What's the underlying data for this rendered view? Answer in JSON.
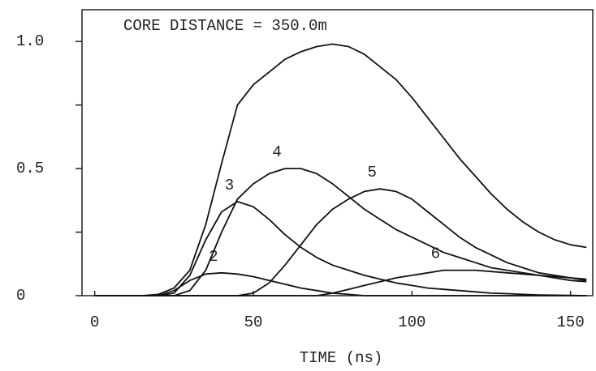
{
  "chart_data": {
    "type": "line",
    "annotation": "CORE DISTANCE = 350.0m",
    "xlabel": "TIME (ns)",
    "x": [
      0,
      5,
      10,
      15,
      20,
      25,
      30,
      35,
      40,
      45,
      50,
      55,
      60,
      65,
      70,
      75,
      80,
      85,
      90,
      95,
      100,
      105,
      110,
      115,
      120,
      125,
      130,
      135,
      140,
      145,
      150,
      155
    ],
    "series": [
      {
        "color": "#111111",
        "values": [
          0,
          0,
          0,
          0,
          0.005,
          0.03,
          0.1,
          0.28,
          0.52,
          0.75,
          0.83,
          0.88,
          0.93,
          0.96,
          0.98,
          0.99,
          0.98,
          0.95,
          0.9,
          0.85,
          0.78,
          0.7,
          0.62,
          0.54,
          0.47,
          0.4,
          0.34,
          0.29,
          0.25,
          0.22,
          0.2,
          0.19
        ]
      },
      {
        "name": "2",
        "color": "#111111",
        "values": [
          0,
          0,
          0,
          0,
          0,
          0.02,
          0.06,
          0.085,
          0.09,
          0.085,
          0.075,
          0.06,
          0.045,
          0.03,
          0.02,
          0.01,
          0.005,
          0,
          0,
          0,
          0,
          0,
          0,
          0,
          0,
          0,
          0,
          0,
          0,
          0,
          0,
          0
        ]
      },
      {
        "name": "3",
        "color": "#111111",
        "values": [
          0,
          0,
          0,
          0,
          0,
          0.01,
          0.08,
          0.22,
          0.33,
          0.37,
          0.35,
          0.3,
          0.24,
          0.19,
          0.15,
          0.12,
          0.1,
          0.08,
          0.065,
          0.05,
          0.04,
          0.03,
          0.025,
          0.02,
          0.015,
          0.01,
          0.008,
          0.005,
          0.003,
          0.002,
          0.001,
          0
        ]
      },
      {
        "name": "4",
        "color": "#111111",
        "values": [
          0,
          0,
          0,
          0,
          0,
          0,
          0.02,
          0.1,
          0.25,
          0.38,
          0.44,
          0.48,
          0.5,
          0.5,
          0.48,
          0.44,
          0.39,
          0.34,
          0.3,
          0.26,
          0.23,
          0.2,
          0.17,
          0.15,
          0.13,
          0.11,
          0.1,
          0.09,
          0.08,
          0.07,
          0.06,
          0.055
        ]
      },
      {
        "name": "5",
        "color": "#111111",
        "values": [
          0,
          0,
          0,
          0,
          0,
          0,
          0,
          0,
          0,
          0,
          0.01,
          0.05,
          0.12,
          0.2,
          0.28,
          0.34,
          0.38,
          0.41,
          0.42,
          0.41,
          0.38,
          0.33,
          0.28,
          0.23,
          0.19,
          0.16,
          0.13,
          0.11,
          0.09,
          0.08,
          0.07,
          0.06
        ]
      },
      {
        "name": "6",
        "color": "#111111",
        "values": [
          0,
          0,
          0,
          0,
          0,
          0,
          0,
          0,
          0,
          0,
          0,
          0,
          0,
          0,
          0,
          0.01,
          0.025,
          0.04,
          0.055,
          0.07,
          0.08,
          0.09,
          0.1,
          0.1,
          0.1,
          0.095,
          0.09,
          0.085,
          0.08,
          0.075,
          0.07,
          0.065
        ]
      }
    ],
    "xlim": [
      -4,
      157
    ],
    "xticks": [
      0,
      50,
      100,
      150
    ],
    "ylim": [
      0,
      1.125
    ],
    "yticks": [
      0,
      {
        "value": 0.5,
        "label": "0.5"
      },
      {
        "value": 1,
        "label": "1.0"
      }
    ],
    "yminor_ticks": [
      0.25,
      0.75
    ]
  }
}
